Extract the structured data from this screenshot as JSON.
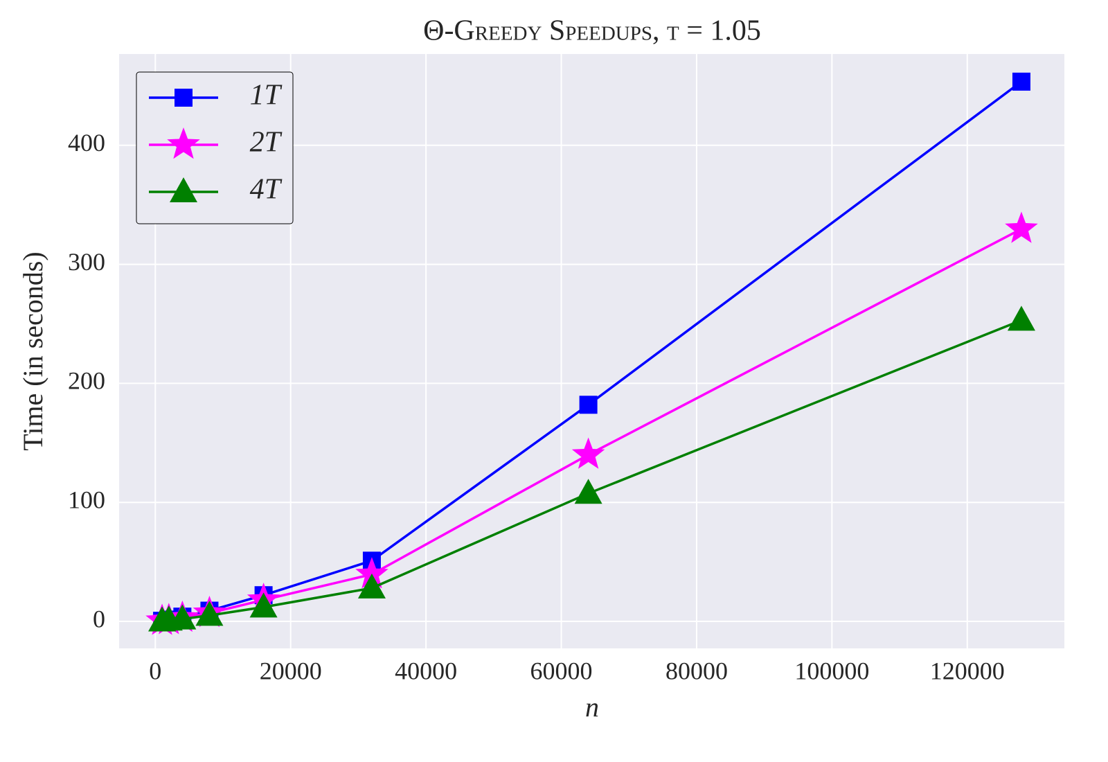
{
  "chart_data": {
    "type": "line",
    "title": "Θ-Greedy Speedups, t = 1.05",
    "x_label": "n",
    "y_label": "Time (in seconds)",
    "x": [
      1000,
      2000,
      4000,
      8000,
      16000,
      32000,
      64000,
      128000
    ],
    "series": [
      {
        "name": "1T",
        "color": "#0000ff",
        "marker": "square",
        "values": [
          0.5,
          1.5,
          4,
          9,
          22,
          51,
          182,
          453.5
        ]
      },
      {
        "name": "2T",
        "color": "#ff00ff",
        "marker": "star",
        "values": [
          0.4,
          1,
          3,
          7,
          18,
          39.5,
          140,
          329.7
        ]
      },
      {
        "name": "4T",
        "color": "#008000",
        "marker": "triangle",
        "values": [
          0.3,
          1,
          2,
          5,
          12,
          28,
          107.5,
          253
        ]
      }
    ],
    "xlim": [
      -5350,
      134350
    ],
    "ylim": [
      -22.7,
      476.7
    ],
    "xticks": [
      0,
      20000,
      40000,
      60000,
      80000,
      100000,
      120000
    ],
    "yticks": [
      0,
      100,
      200,
      300,
      400
    ],
    "grid": true,
    "legend": "upper-left"
  }
}
